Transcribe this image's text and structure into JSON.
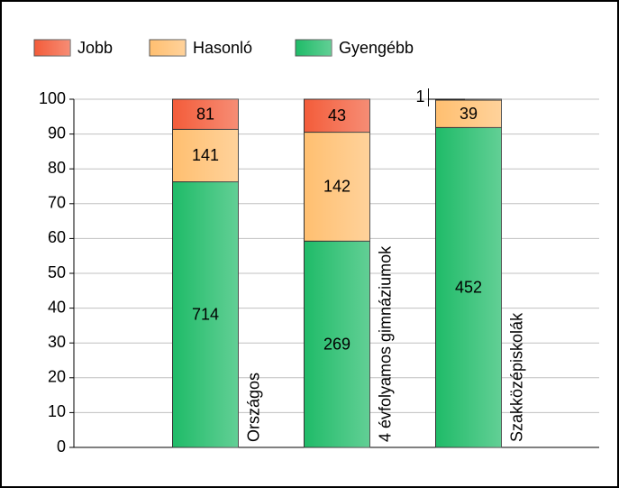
{
  "chart_data": {
    "type": "bar",
    "stacked": "percent",
    "categories": [
      "Országos",
      "4 évfolyamos gimnáziumok",
      "Szakközépiskolák"
    ],
    "series": [
      {
        "name": "Gyengébb",
        "color": "#1fbb68",
        "values": [
          714,
          269,
          452
        ]
      },
      {
        "name": "Hasonló",
        "color": "#ffbf70",
        "values": [
          141,
          142,
          39
        ]
      },
      {
        "name": "Jobb",
        "color": "#f35c3a",
        "values": [
          81,
          43,
          1
        ]
      }
    ],
    "ylim": [
      0,
      100
    ],
    "yticks": [
      0,
      10,
      20,
      30,
      40,
      50,
      60,
      70,
      80,
      90,
      100
    ],
    "grid": true,
    "legend": "top"
  }
}
